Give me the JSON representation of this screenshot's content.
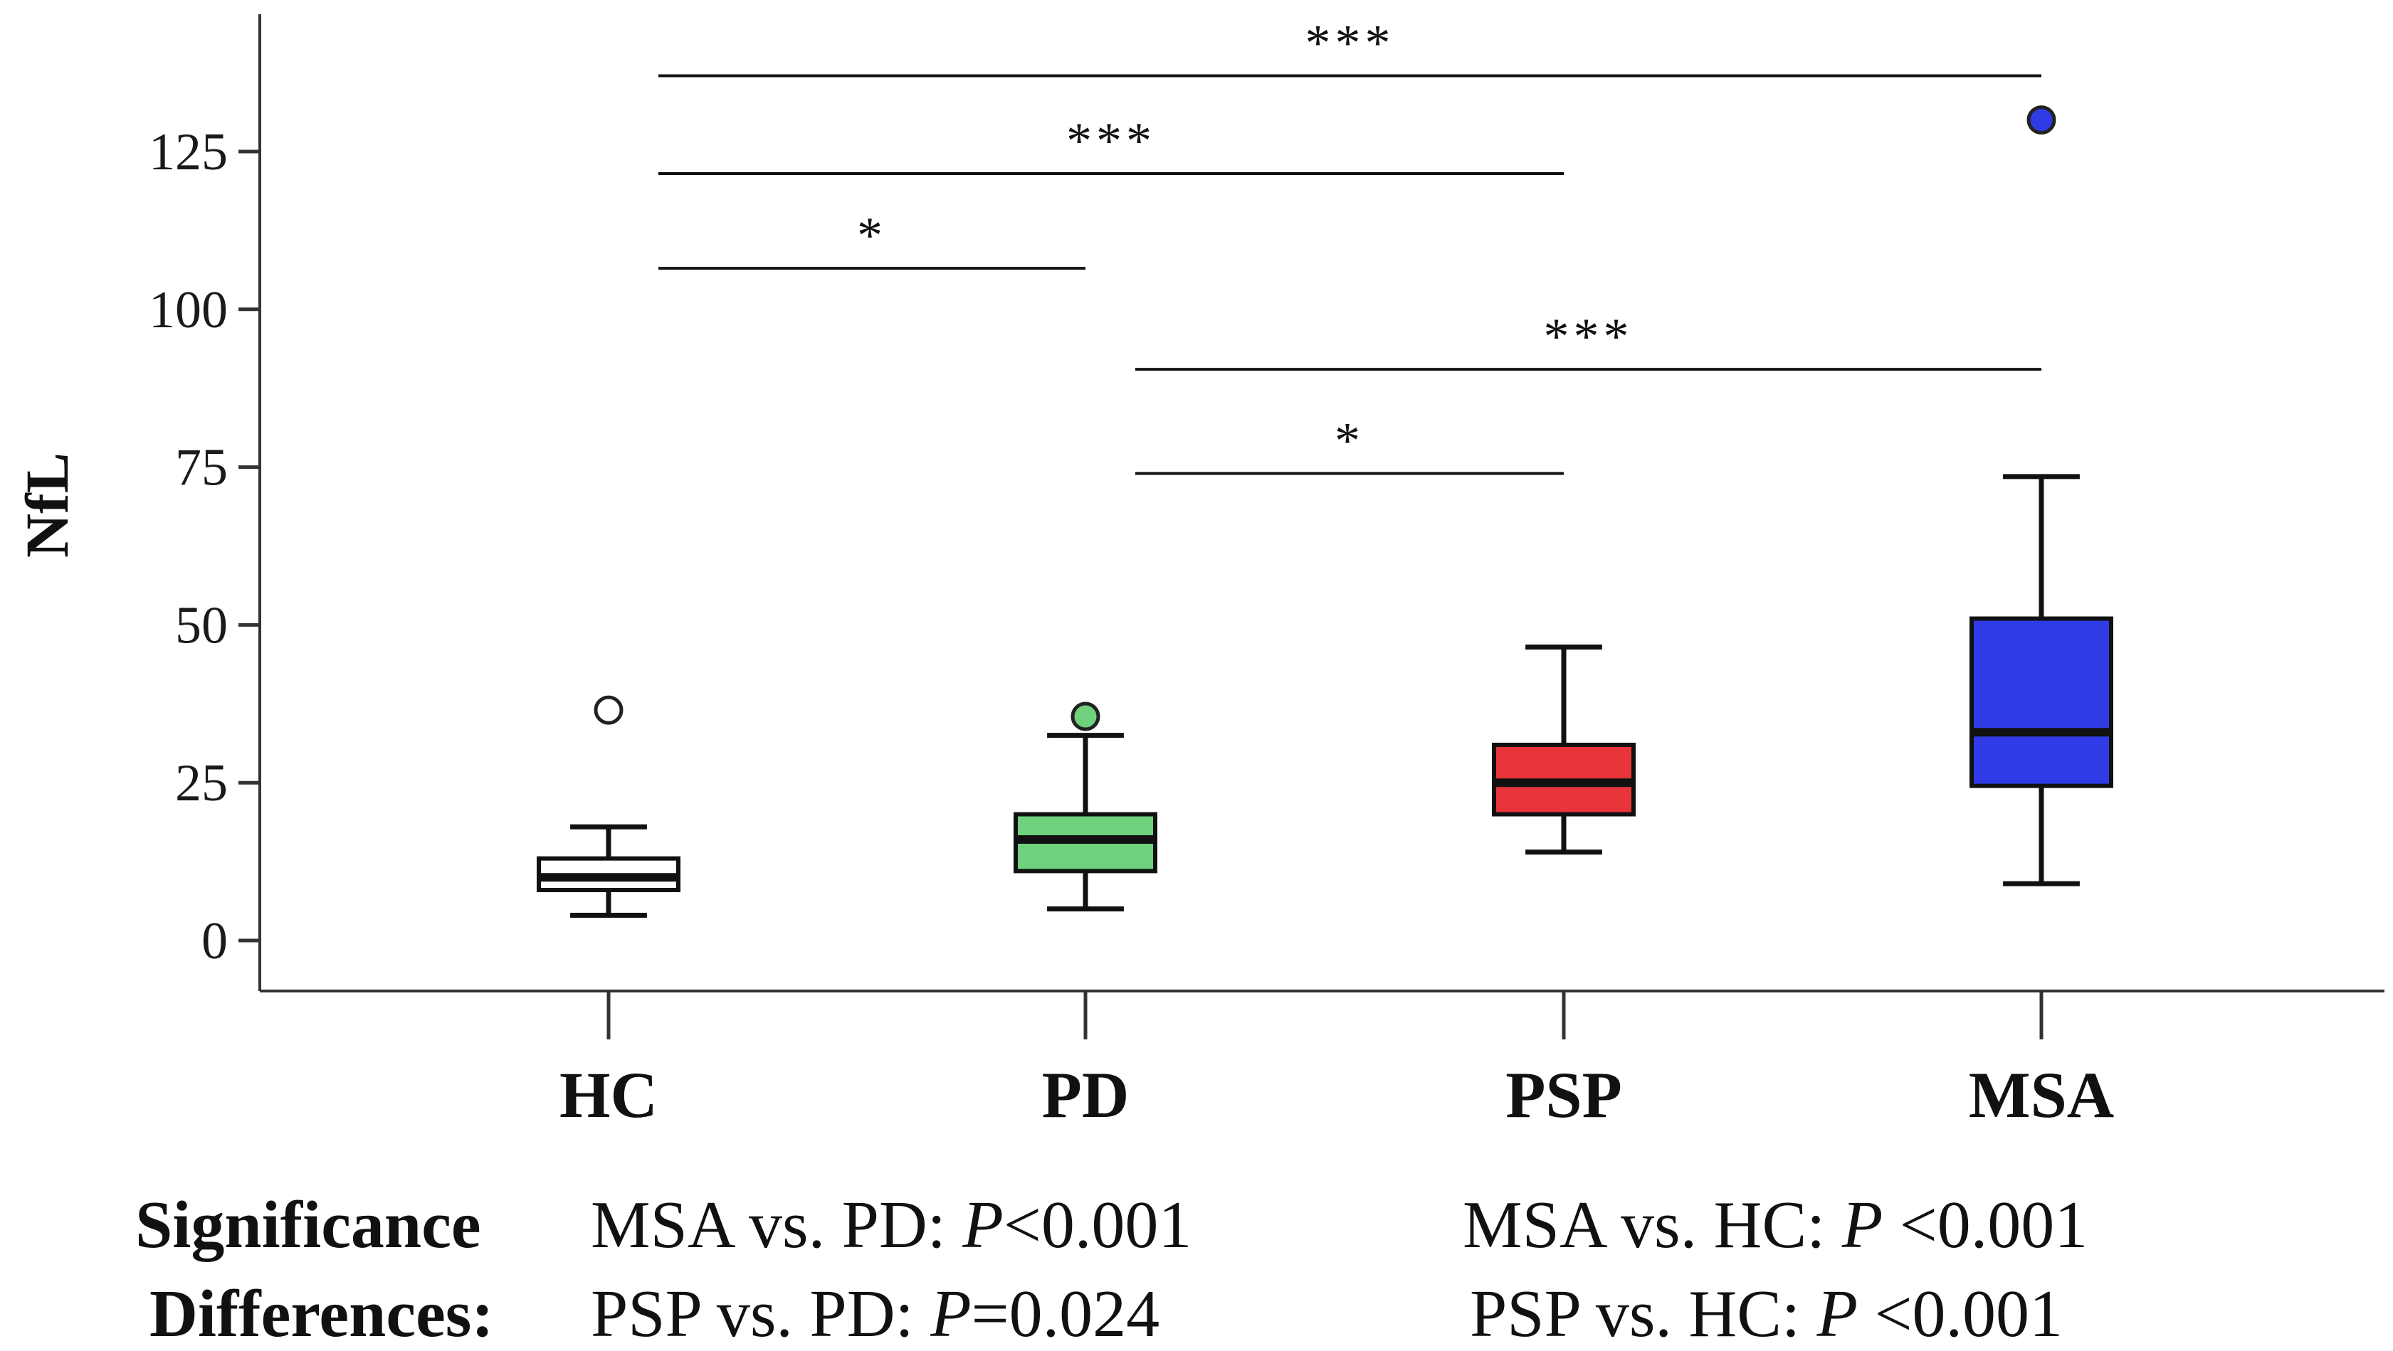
{
  "chart_data": {
    "type": "box",
    "ylabel": "NfL",
    "xlabel": "",
    "ylim": [
      -8,
      145
    ],
    "yticks": [
      "0",
      "25",
      "50",
      "75",
      "100",
      "125"
    ],
    "categories": [
      "HC",
      "PD",
      "PSP",
      "MSA"
    ],
    "boxes": [
      {
        "category": "HC",
        "whisker_low": 4,
        "q1": 8,
        "median": 10,
        "q3": 13,
        "whisker_high": 18,
        "outliers": [
          36.5
        ],
        "fill": "#ffffff"
      },
      {
        "category": "PD",
        "whisker_low": 5,
        "q1": 11,
        "median": 16,
        "q3": 20,
        "whisker_high": 32.5,
        "outliers": [
          35.5
        ],
        "fill": "#6fd17d"
      },
      {
        "category": "PSP",
        "whisker_low": 14,
        "q1": 20,
        "median": 25,
        "q3": 31,
        "whisker_high": 46.5,
        "outliers": [],
        "fill": "#e8343b"
      },
      {
        "category": "MSA",
        "whisker_low": 9,
        "q1": 24.5,
        "median": 33,
        "q3": 51,
        "whisker_high": 73.5,
        "outliers": [
          130
        ],
        "fill": "#2f3ce6"
      }
    ],
    "significance": [
      {
        "from": "HC",
        "to": "MSA",
        "label": "***",
        "y": 137
      },
      {
        "from": "HC",
        "to": "PSP",
        "label": "***",
        "y": 121.5
      },
      {
        "from": "HC",
        "to": "PD",
        "label": "*",
        "y": 106.5
      },
      {
        "from": "PD",
        "to": "MSA",
        "label": "***",
        "y": 90.5
      },
      {
        "from": "PD",
        "to": "PSP",
        "label": "*",
        "y": 74
      }
    ]
  },
  "footer": {
    "heading_line1": "Significance",
    "heading_line2": "Differences:",
    "stat1_prefix": "MSA vs. PD: ",
    "stat1_p": "P",
    "stat1_value": "<0.001",
    "stat2_prefix": "PSP vs. PD: ",
    "stat2_p": "P",
    "stat2_value": "=0.024",
    "stat3_prefix": "MSA vs. HC: ",
    "stat3_p": "P",
    "stat3_value": " <0.001",
    "stat4_prefix": "PSP vs. HC: ",
    "stat4_p": "P",
    "stat4_value": " <0.001"
  }
}
